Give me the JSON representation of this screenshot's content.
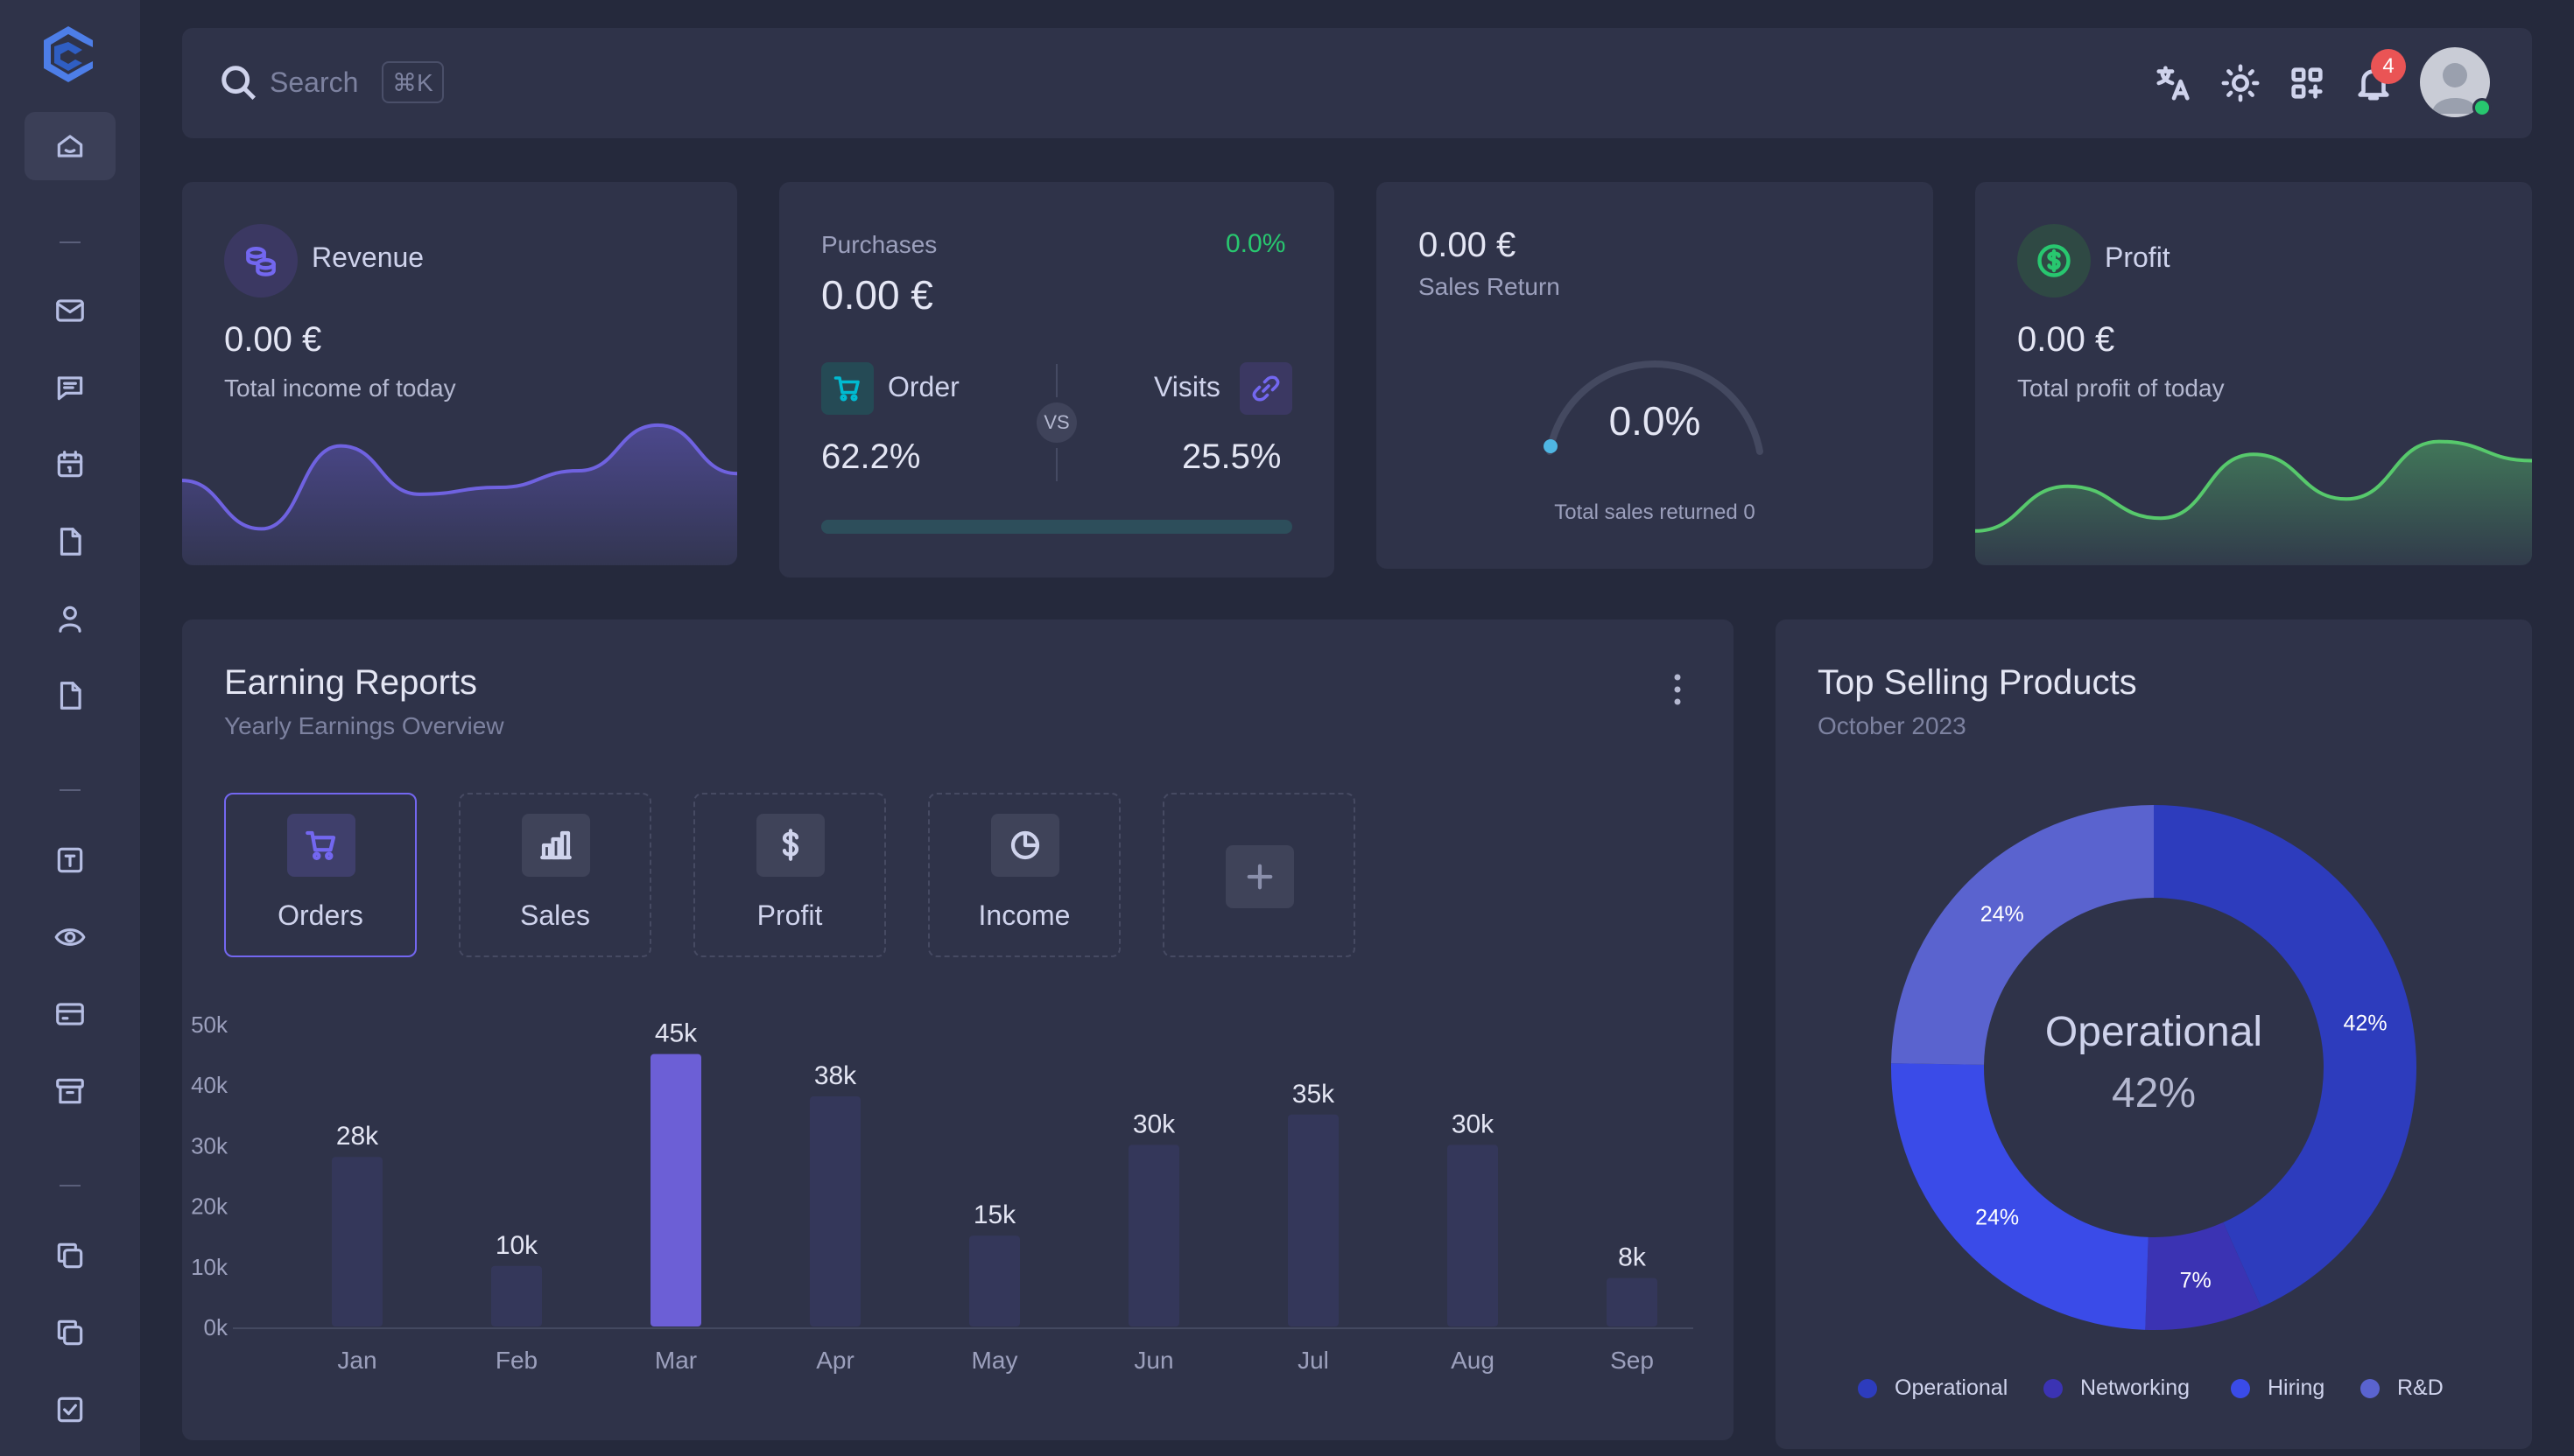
{
  "topbar": {
    "search_placeholder": "Search",
    "shortcut": "⌘K",
    "notification_count": "4",
    "icons": [
      "translate-icon",
      "sun-icon",
      "apps-grid-icon",
      "bell-icon"
    ]
  },
  "sidebar": {
    "items": [
      {
        "name": "home-icon"
      },
      {
        "name": "mail-icon"
      },
      {
        "name": "chat-icon"
      },
      {
        "name": "calendar-icon"
      },
      {
        "name": "file-icon"
      },
      {
        "name": "user-icon"
      },
      {
        "name": "document-icon"
      },
      {
        "name": "text-box-icon"
      },
      {
        "name": "eye-icon"
      },
      {
        "name": "credit-card-icon"
      },
      {
        "name": "archive-icon"
      },
      {
        "name": "copy-icon"
      },
      {
        "name": "layers-icon"
      },
      {
        "name": "checkbox-icon"
      }
    ]
  },
  "revenue": {
    "label": "Revenue",
    "value": "0.00 €",
    "sub": "Total income of today"
  },
  "purchases": {
    "label": "Purchases",
    "change": "0.0%",
    "value": "0.00 €",
    "order_label": "Order",
    "order_value": "62.2%",
    "vs": "VS",
    "visits_label": "Visits",
    "visits_value": "25.5%",
    "progress_fraction": 0.622
  },
  "sales_return": {
    "value": "0.00 €",
    "label": "Sales Return",
    "gauge_value": "0.0%",
    "footer": "Total sales returned 0"
  },
  "profit": {
    "label": "Profit",
    "value": "0.00 €",
    "sub": "Total profit of today"
  },
  "earnings": {
    "title": "Earning Reports",
    "subtitle": "Yearly Earnings Overview",
    "tabs": [
      {
        "label": "Orders",
        "icon": "cart-icon"
      },
      {
        "label": "Sales",
        "icon": "bar-chart-icon"
      },
      {
        "label": "Profit",
        "icon": "dollar-icon"
      },
      {
        "label": "Income",
        "icon": "pie-icon"
      },
      {
        "label": "",
        "icon": "plus-icon"
      }
    ]
  },
  "top_selling": {
    "title": "Top Selling Products",
    "subtitle": "October 2023",
    "center_label": "Operational",
    "center_value": "42%"
  },
  "chart_data": [
    {
      "type": "bar",
      "categories": [
        "Jan",
        "Feb",
        "Mar",
        "Apr",
        "May",
        "Jun",
        "Jul",
        "Aug",
        "Sep"
      ],
      "values": [
        28,
        10,
        45,
        38,
        15,
        30,
        35,
        30,
        8
      ],
      "data_labels": [
        "28k",
        "10k",
        "45k",
        "38k",
        "15k",
        "30k",
        "35k",
        "30k",
        "8k"
      ],
      "y_ticks": [
        "0k",
        "10k",
        "20k",
        "30k",
        "40k",
        "50k"
      ],
      "ylim": [
        0,
        50
      ],
      "highlight_index": 2,
      "colors": {
        "bar": "#34375a",
        "highlight": "#6c5fd6"
      }
    },
    {
      "type": "pie",
      "labels": [
        "Operational",
        "Networking",
        "Hiring",
        "R&D"
      ],
      "values": [
        42,
        7,
        24,
        24
      ],
      "data_labels": [
        "42%",
        "7%",
        "24%",
        "24%"
      ],
      "colors": [
        "#2d3cbd",
        "#3b33b3",
        "#3a4be8",
        "#5a63cf"
      ],
      "legend": "bottom"
    },
    {
      "type": "area",
      "series_name": "revenue-sparkline",
      "values": [
        0.55,
        0.2,
        0.8,
        0.45,
        0.5,
        0.62,
        0.95,
        0.6
      ],
      "colors": {
        "line": "#6f62e0"
      }
    },
    {
      "type": "area",
      "series_name": "profit-sparkline",
      "values": [
        0.2,
        0.55,
        0.3,
        0.8,
        0.45,
        0.9,
        0.75
      ],
      "colors": {
        "line": "#57c96c"
      }
    }
  ]
}
